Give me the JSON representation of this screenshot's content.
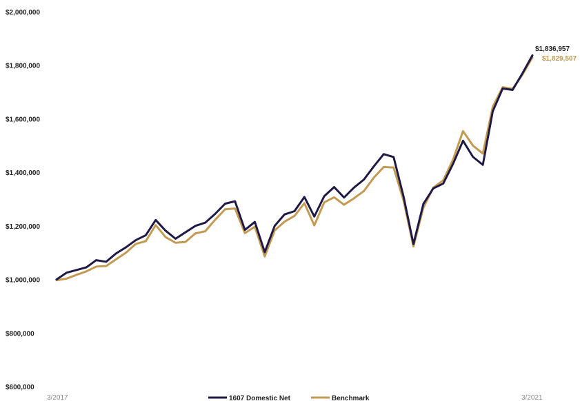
{
  "chart_data": {
    "type": "line",
    "title": "",
    "xlabel": "",
    "ylabel": "",
    "ylim": [
      600000,
      2000000
    ],
    "y_ticks": [
      "$600,000",
      "$800,000",
      "$1,000,000",
      "$1,200,000",
      "$1,400,000",
      "$1,600,000",
      "$1,800,000",
      "$2,000,000"
    ],
    "y_tick_values": [
      600000,
      800000,
      1000000,
      1200000,
      1400000,
      1600000,
      1800000,
      2000000
    ],
    "x_tick_labels": [
      "3/2017",
      "3/2021"
    ],
    "x": [
      "3/2017",
      "4/2017",
      "5/2017",
      "6/2017",
      "7/2017",
      "8/2017",
      "9/2017",
      "10/2017",
      "11/2017",
      "12/2017",
      "1/2018",
      "2/2018",
      "3/2018",
      "4/2018",
      "5/2018",
      "6/2018",
      "7/2018",
      "8/2018",
      "9/2018",
      "10/2018",
      "11/2018",
      "12/2018",
      "1/2019",
      "2/2019",
      "3/2019",
      "4/2019",
      "5/2019",
      "6/2019",
      "7/2019",
      "8/2019",
      "9/2019",
      "10/2019",
      "11/2019",
      "12/2019",
      "1/2020",
      "2/2020",
      "3/2020",
      "4/2020",
      "5/2020",
      "6/2020",
      "7/2020",
      "8/2020",
      "9/2020",
      "10/2020",
      "11/2020",
      "12/2020",
      "1/2021",
      "2/2021",
      "3/2021"
    ],
    "series": [
      {
        "name": "1607 Domestic Net",
        "color": "#1f1a45",
        "values": [
          1000000,
          1025000,
          1035000,
          1045000,
          1072000,
          1066000,
          1097000,
          1120000,
          1147000,
          1165000,
          1222000,
          1182000,
          1152000,
          1176000,
          1200000,
          1212000,
          1245000,
          1283000,
          1292000,
          1185000,
          1215000,
          1102000,
          1200000,
          1243000,
          1255000,
          1308000,
          1235000,
          1311000,
          1345000,
          1306000,
          1343000,
          1373000,
          1422000,
          1468000,
          1457000,
          1310000,
          1132000,
          1282000,
          1340000,
          1358000,
          1432000,
          1518000,
          1458000,
          1428000,
          1628000,
          1713000,
          1708000,
          1770000,
          1836957
        ],
        "end_label": "$1,836,957"
      },
      {
        "name": "Benchmark",
        "color": "#c49a52",
        "values": [
          997000,
          1003000,
          1017000,
          1030000,
          1048000,
          1050000,
          1075000,
          1100000,
          1133000,
          1143000,
          1203000,
          1158000,
          1137000,
          1140000,
          1172000,
          1180000,
          1223000,
          1262000,
          1265000,
          1173000,
          1197000,
          1086000,
          1183000,
          1216000,
          1237000,
          1285000,
          1202000,
          1288000,
          1307000,
          1279000,
          1303000,
          1330000,
          1380000,
          1420000,
          1418000,
          1295000,
          1123000,
          1268000,
          1343000,
          1370000,
          1448000,
          1554000,
          1500000,
          1470000,
          1645000,
          1718000,
          1712000,
          1765000,
          1829507
        ],
        "end_label": "$1,829,507"
      }
    ],
    "legend": {
      "placement": "bottom-center",
      "entries": [
        "1607 Domestic Net",
        "Benchmark"
      ]
    },
    "grid": false
  }
}
